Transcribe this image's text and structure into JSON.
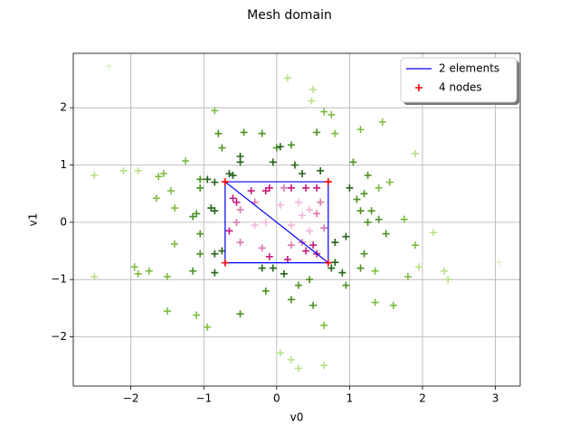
{
  "chart_data": {
    "type": "scatter",
    "title": "Mesh domain",
    "x_label": "v0",
    "y_label": "v1",
    "xlim": [
      -2.79,
      3.34
    ],
    "ylim": [
      -2.86,
      2.95
    ],
    "xticks": [
      {
        "value": -2,
        "label": "−2"
      },
      {
        "value": -1,
        "label": "−1"
      },
      0,
      1,
      2,
      3
    ],
    "yticks": [
      {
        "value": -2,
        "label": "−2"
      },
      {
        "value": -1,
        "label": "−1"
      },
      0,
      1,
      2
    ],
    "grid": true,
    "legend": "upper right",
    "points": [
      {
        "x": -2.3,
        "y": 2.72,
        "color": "#e6f5d0"
      },
      {
        "x": 0.15,
        "y": 2.52,
        "color": "#b8e186"
      },
      {
        "x": 0.5,
        "y": 2.32,
        "color": "#b8e186"
      },
      {
        "x": 0.48,
        "y": 2.12,
        "color": "#b8e186"
      },
      {
        "x": 0.65,
        "y": 1.93,
        "color": "#7fbc41"
      },
      {
        "x": 0.75,
        "y": 1.88,
        "color": "#7fbc41"
      },
      {
        "x": 1.45,
        "y": 1.75,
        "color": "#7fbc41"
      },
      {
        "x": 1.15,
        "y": 1.62,
        "color": "#7fbc41"
      },
      {
        "x": -0.85,
        "y": 1.95,
        "color": "#7fbc41"
      },
      {
        "x": -0.2,
        "y": 1.55,
        "color": "#4d9221"
      },
      {
        "x": -0.45,
        "y": 1.57,
        "color": "#4d9221"
      },
      {
        "x": 0,
        "y": 1.3,
        "color": "#4d9221"
      },
      {
        "x": 0.05,
        "y": 1.32,
        "color": "#276419"
      },
      {
        "x": 0.2,
        "y": 1.35,
        "color": "#4d9221"
      },
      {
        "x": 0.55,
        "y": 1.57,
        "color": "#4d9221"
      },
      {
        "x": 0.8,
        "y": 1.55,
        "color": "#7fbc41"
      },
      {
        "x": -0.8,
        "y": 1.55,
        "color": "#4d9221"
      },
      {
        "x": -0.75,
        "y": 1.3,
        "color": "#4d9221"
      },
      {
        "x": -0.5,
        "y": 1.15,
        "color": "#276419"
      },
      {
        "x": -0.5,
        "y": 1.05,
        "color": "#276419"
      },
      {
        "x": -0.05,
        "y": 1.05,
        "color": "#276419"
      },
      {
        "x": 0.25,
        "y": 1,
        "color": "#276419"
      },
      {
        "x": 0.35,
        "y": 0.85,
        "color": "#276419"
      },
      {
        "x": 0.6,
        "y": 0.9,
        "color": "#276419"
      },
      {
        "x": 1.05,
        "y": 1.05,
        "color": "#4d9221"
      },
      {
        "x": 1.25,
        "y": 0.82,
        "color": "#4d9221"
      },
      {
        "x": 1.9,
        "y": 1.2,
        "color": "#b8e186"
      },
      {
        "x": -2.5,
        "y": 0.82,
        "color": "#b8e186"
      },
      {
        "x": -2.1,
        "y": 0.9,
        "color": "#b8e186"
      },
      {
        "x": -1.9,
        "y": 0.9,
        "color": "#b8e186"
      },
      {
        "x": -1.55,
        "y": 0.85,
        "color": "#7fbc41"
      },
      {
        "x": -1.62,
        "y": 0.8,
        "color": "#7fbc41"
      },
      {
        "x": -1.25,
        "y": 1.07,
        "color": "#7fbc41"
      },
      {
        "x": -1.45,
        "y": 0.55,
        "color": "#7fbc41"
      },
      {
        "x": -1.65,
        "y": 0.42,
        "color": "#7fbc41"
      },
      {
        "x": -1.05,
        "y": 0.75,
        "color": "#4d9221"
      },
      {
        "x": -1.05,
        "y": 0.6,
        "color": "#4d9221"
      },
      {
        "x": -0.95,
        "y": 0.75,
        "color": "#276419"
      },
      {
        "x": -0.85,
        "y": 0.7,
        "color": "#276419"
      },
      {
        "x": -0.65,
        "y": 0.85,
        "color": "#276419"
      },
      {
        "x": -0.6,
        "y": 0.82,
        "color": "#276419"
      },
      {
        "x": -1.4,
        "y": 0.25,
        "color": "#7fbc41"
      },
      {
        "x": -1.1,
        "y": 0.15,
        "color": "#4d9221"
      },
      {
        "x": -1.15,
        "y": 0.1,
        "color": "#4d9221"
      },
      {
        "x": -0.9,
        "y": 0.25,
        "color": "#276419"
      },
      {
        "x": -0.85,
        "y": 0.2,
        "color": "#276419"
      },
      {
        "x": -1.05,
        "y": -0.2,
        "color": "#4d9221"
      },
      {
        "x": -1.4,
        "y": -0.38,
        "color": "#7fbc41"
      },
      {
        "x": -1.05,
        "y": -0.55,
        "color": "#4d9221"
      },
      {
        "x": -0.85,
        "y": -0.55,
        "color": "#276419"
      },
      {
        "x": -0.75,
        "y": -0.5,
        "color": "#276419"
      },
      {
        "x": -2.5,
        "y": -0.95,
        "color": "#b8e186"
      },
      {
        "x": -1.95,
        "y": -0.78,
        "color": "#7fbc41"
      },
      {
        "x": -1.9,
        "y": -0.9,
        "color": "#7fbc41"
      },
      {
        "x": -1.75,
        "y": -0.85,
        "color": "#7fbc41"
      },
      {
        "x": -1.5,
        "y": -0.95,
        "color": "#7fbc41"
      },
      {
        "x": -1.15,
        "y": -0.85,
        "color": "#4d9221"
      },
      {
        "x": -0.85,
        "y": -0.88,
        "color": "#276419"
      },
      {
        "x": -1.5,
        "y": -1.55,
        "color": "#7fbc41"
      },
      {
        "x": -1.1,
        "y": -1.62,
        "color": "#7fbc41"
      },
      {
        "x": -0.95,
        "y": -1.83,
        "color": "#7fbc41"
      },
      {
        "x": -0.5,
        "y": -1.6,
        "color": "#4d9221"
      },
      {
        "x": -0.2,
        "y": -0.8,
        "color": "#276419"
      },
      {
        "x": -0.15,
        "y": -1.2,
        "color": "#4d9221"
      },
      {
        "x": -0.05,
        "y": -0.8,
        "color": "#276419"
      },
      {
        "x": 0.1,
        "y": -0.9,
        "color": "#276419"
      },
      {
        "x": 0.3,
        "y": -1.1,
        "color": "#4d9221"
      },
      {
        "x": 0.45,
        "y": -1,
        "color": "#4d9221"
      },
      {
        "x": 0.2,
        "y": -1.35,
        "color": "#4d9221"
      },
      {
        "x": 0.5,
        "y": -1.45,
        "color": "#4d9221"
      },
      {
        "x": 0.65,
        "y": -1.8,
        "color": "#7fbc41"
      },
      {
        "x": 0.75,
        "y": -0.8,
        "color": "#276419"
      },
      {
        "x": 0.8,
        "y": -0.7,
        "color": "#276419"
      },
      {
        "x": 0.9,
        "y": -0.88,
        "color": "#276419"
      },
      {
        "x": 0.95,
        "y": -1.1,
        "color": "#4d9221"
      },
      {
        "x": 0.8,
        "y": -0.35,
        "color": "#276419"
      },
      {
        "x": 0.95,
        "y": -0.25,
        "color": "#276419"
      },
      {
        "x": 1.2,
        "y": -0.55,
        "color": "#4d9221"
      },
      {
        "x": 1.15,
        "y": -0.8,
        "color": "#4d9221"
      },
      {
        "x": 1.35,
        "y": -1.4,
        "color": "#7fbc41"
      },
      {
        "x": 1.6,
        "y": -1.45,
        "color": "#7fbc41"
      },
      {
        "x": 1.35,
        "y": -0.85,
        "color": "#7fbc41"
      },
      {
        "x": 1.8,
        "y": -0.95,
        "color": "#7fbc41"
      },
      {
        "x": 1.95,
        "y": -0.78,
        "color": "#b8e186"
      },
      {
        "x": 2.3,
        "y": -0.85,
        "color": "#b8e186"
      },
      {
        "x": 2.35,
        "y": -1,
        "color": "#b8e186"
      },
      {
        "x": 3.05,
        "y": -0.7,
        "color": "#e6f5d0"
      },
      {
        "x": 2.15,
        "y": -0.18,
        "color": "#b8e186"
      },
      {
        "x": 1.5,
        "y": -0.2,
        "color": "#4d9221"
      },
      {
        "x": 1.75,
        "y": 0.05,
        "color": "#7fbc41"
      },
      {
        "x": 1.9,
        "y": -0.4,
        "color": "#7fbc41"
      },
      {
        "x": 1.25,
        "y": 0,
        "color": "#4d9221"
      },
      {
        "x": 1.4,
        "y": 0.05,
        "color": "#4d9221"
      },
      {
        "x": 1.15,
        "y": 0.2,
        "color": "#4d9221"
      },
      {
        "x": 1.3,
        "y": 0.2,
        "color": "#4d9221"
      },
      {
        "x": 1.1,
        "y": 0.4,
        "color": "#4d9221"
      },
      {
        "x": 1.2,
        "y": 0.5,
        "color": "#4d9221"
      },
      {
        "x": 1.4,
        "y": 0.6,
        "color": "#7fbc41"
      },
      {
        "x": 1.55,
        "y": 0.7,
        "color": "#7fbc41"
      },
      {
        "x": 1,
        "y": 0.6,
        "color": "#276419"
      },
      {
        "x": 0.05,
        "y": -2.28,
        "color": "#b8e186"
      },
      {
        "x": 0.2,
        "y": -2.4,
        "color": "#b8e186"
      },
      {
        "x": 0.3,
        "y": -2.55,
        "color": "#b8e186"
      },
      {
        "x": 0.65,
        "y": -2.5,
        "color": "#b8e186"
      },
      {
        "x": -0.6,
        "y": 0.42,
        "color": "#c51b7d"
      },
      {
        "x": -0.55,
        "y": 0.35,
        "color": "#c51b7d"
      },
      {
        "x": -0.35,
        "y": 0.55,
        "color": "#c51b7d"
      },
      {
        "x": -0.15,
        "y": 0.55,
        "color": "#c51b7d"
      },
      {
        "x": -0.1,
        "y": 0.6,
        "color": "#c51b7d"
      },
      {
        "x": 0.1,
        "y": 0.6,
        "color": "#de77ae"
      },
      {
        "x": 0.2,
        "y": 0.6,
        "color": "#c51b7d"
      },
      {
        "x": 0.4,
        "y": 0.6,
        "color": "#c51b7d"
      },
      {
        "x": 0.55,
        "y": 0.6,
        "color": "#c51b7d"
      },
      {
        "x": -0.3,
        "y": 0.35,
        "color": "#de77ae"
      },
      {
        "x": -0.5,
        "y": 0.22,
        "color": "#de77ae"
      },
      {
        "x": 0.05,
        "y": 0.3,
        "color": "#f1b6da"
      },
      {
        "x": 0.3,
        "y": 0.35,
        "color": "#f1b6da"
      },
      {
        "x": 0.45,
        "y": 0.22,
        "color": "#f1b6da"
      },
      {
        "x": 0.6,
        "y": 0.35,
        "color": "#de77ae"
      },
      {
        "x": 0.55,
        "y": 0.15,
        "color": "#de77ae"
      },
      {
        "x": 0.35,
        "y": 0.12,
        "color": "#f1b6da"
      },
      {
        "x": -0.55,
        "y": 0,
        "color": "#de77ae"
      },
      {
        "x": -0.65,
        "y": -0.15,
        "color": "#c51b7d"
      },
      {
        "x": -0.3,
        "y": -0.05,
        "color": "#f1b6da"
      },
      {
        "x": -0.15,
        "y": 0,
        "color": "#f1b6da"
      },
      {
        "x": 0.2,
        "y": -0.05,
        "color": "#f1b6da"
      },
      {
        "x": 0.45,
        "y": -0.15,
        "color": "#f1b6da"
      },
      {
        "x": 0.65,
        "y": -0.1,
        "color": "#de77ae"
      },
      {
        "x": -0.5,
        "y": -0.35,
        "color": "#de77ae"
      },
      {
        "x": -0.2,
        "y": -0.45,
        "color": "#de77ae"
      },
      {
        "x": 0.2,
        "y": -0.4,
        "color": "#de77ae"
      },
      {
        "x": 0.35,
        "y": -0.35,
        "color": "#de77ae"
      },
      {
        "x": 0.5,
        "y": -0.4,
        "color": "#c51b7d"
      },
      {
        "x": 0.4,
        "y": -0.5,
        "color": "#c51b7d"
      },
      {
        "x": 0.55,
        "y": -0.55,
        "color": "#c51b7d"
      },
      {
        "x": -0.1,
        "y": -0.6,
        "color": "#c51b7d"
      },
      {
        "x": 0.15,
        "y": -0.65,
        "color": "#c51b7d"
      }
    ],
    "series": [
      {
        "name": "2 elements",
        "color": "#0000ff",
        "kind": "line",
        "x": [
          -0.7071,
          0.7071,
          0.7071,
          -0.7071,
          -0.7071,
          0.7071
        ],
        "y": [
          0.7071,
          -0.7071,
          0.7071,
          0.7071,
          -0.7071,
          -0.7071
        ]
      },
      {
        "name": "4 nodes",
        "color": "#ff0000",
        "kind": "marker",
        "x": [
          -0.7071,
          0.7071,
          0.7071,
          -0.7071
        ],
        "y": [
          -0.7071,
          -0.7071,
          0.7071,
          0.7071
        ]
      }
    ]
  }
}
